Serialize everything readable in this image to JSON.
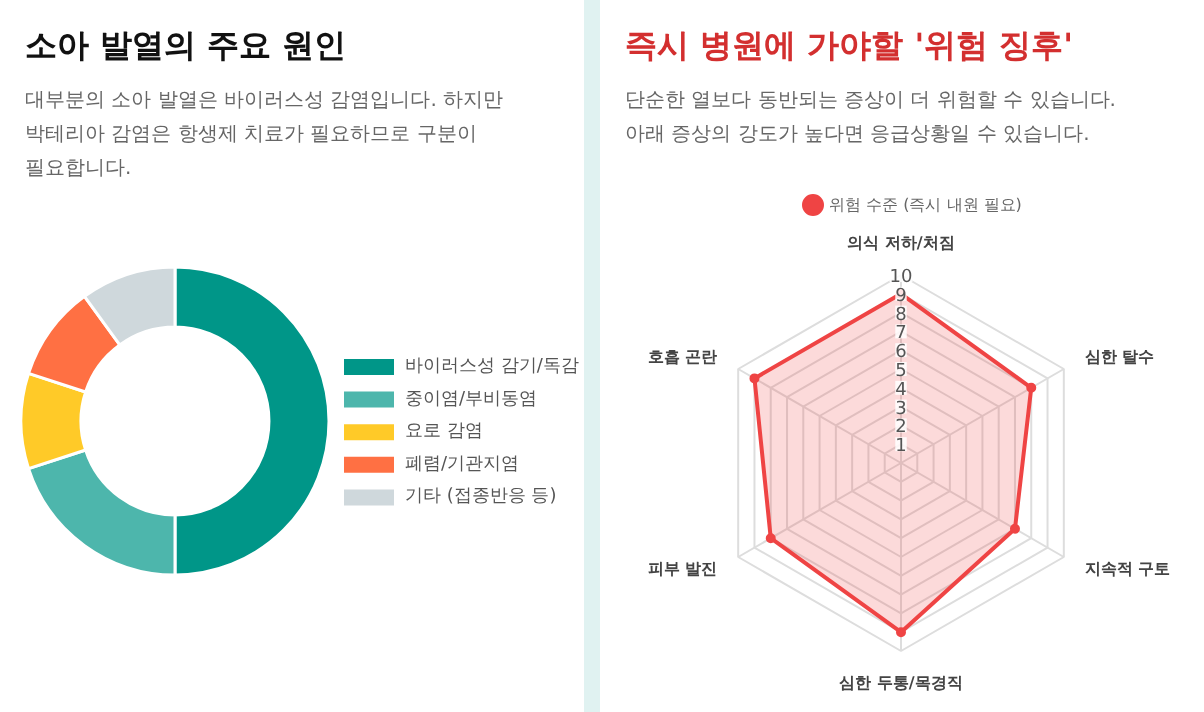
{
  "chart_data": [
    {
      "type": "donut",
      "title": "소아 발열의 주요 원인",
      "subtitle": "대부분의 소아 발열은 바이러스성 감염입니다. 하지만 박테리아 감염은 항생제 치료가 필요하므로 구분이 필요합니다.",
      "categories": [
        "바이러스성 감기/독감",
        "중이염/부비동염",
        "요로 감염",
        "폐렴/기관지염",
        "기타 (접종반응 등)"
      ],
      "values": [
        50,
        20,
        10,
        10,
        10
      ],
      "colors": [
        "#009688",
        "#4db6ac",
        "#ffca28",
        "#ff7043",
        "#cfd8dc"
      ],
      "legend": "right"
    },
    {
      "type": "radar",
      "title": "즉시 병원에 가야할 '위험 징후'",
      "subtitle": "단순한 열보다 동반되는 증상이 더 위험할 수 있습니다. 아래 증상의 강도가 높다면 응급상황일 수 있습니다.",
      "categories": [
        "의식 저하/처짐",
        "심한 탈수",
        "지속적 구토",
        "심한 두통/목경직",
        "피부 발진",
        "호흡 곤란"
      ],
      "series": [
        {
          "name": "위험 수준 (즉시 내원 필요)",
          "color": "#ef4444",
          "values": [
            9,
            8,
            7,
            9,
            8,
            9
          ]
        }
      ],
      "ylim": [
        0,
        10
      ],
      "yticks": [
        1,
        2,
        3,
        4,
        5,
        6,
        7,
        8,
        9,
        10
      ],
      "grid": true,
      "legend": "top",
      "marker": "circle"
    }
  ]
}
